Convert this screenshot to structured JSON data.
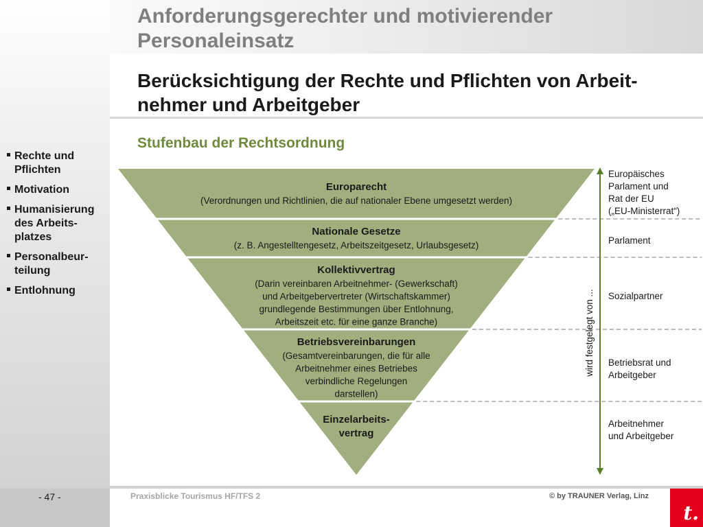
{
  "header": {
    "title": "Anforderungsgerechter und motivierender Personaleinsatz",
    "subtitle": "Berücksichtigung der Rechte und Pflichten von Arbeit-nehmer und Arbeitgeber",
    "section": "Stufenbau der Rechtsordnung"
  },
  "nav": [
    {
      "label": "Rechte und Pflichten",
      "active": true
    },
    {
      "label": "Motivation",
      "active": false
    },
    {
      "label": "Humanisierung des Arbeits-platzes",
      "active": false
    },
    {
      "label": "Personalbeur-teilung",
      "active": false
    },
    {
      "label": "Entlohnung",
      "active": false
    }
  ],
  "pyramid": {
    "color": "#a3ae7e",
    "levels": [
      {
        "title": "Europarecht",
        "desc": [
          "(Verordnungen und Richtlinien, die auf nationaler Ebene umgesetzt werden)"
        ],
        "party": [
          "Europäisches",
          "Parlament und",
          "Rat der EU",
          "(„EU-Ministerrat“)"
        ]
      },
      {
        "title": "Nationale Gesetze",
        "desc": [
          "(z. B. Angestelltengesetz, Arbeitszeitgesetz, Urlaubsgesetz)"
        ],
        "party": [
          "Parlament"
        ]
      },
      {
        "title": "Kollektivvertrag",
        "desc": [
          "(Darin vereinbaren Arbeitnehmer- (Gewerkschaft)",
          "und Arbeitgebervertreter (Wirtschaftskammer)",
          "grundlegende Bestimmungen über Entlohnung,",
          "Arbeitszeit etc. für eine ganze Branche)"
        ],
        "party": [
          "Sozialpartner"
        ]
      },
      {
        "title": "Betriebsvereinbarungen",
        "desc": [
          "(Gesamtvereinbarungen, die für alle",
          "Arbeitnehmer eines Betriebes",
          "verbindliche Regelungen",
          "darstellen)"
        ],
        "party": [
          "Betriebsrat und",
          "Arbeitgeber"
        ]
      },
      {
        "title": [
          "Einzelarbeits-",
          "vertrag"
        ],
        "desc": [],
        "party": [
          "Arbeitnehmer",
          "und Arbeitgeber"
        ]
      }
    ]
  },
  "axis_label": "wird festgelegt von ...",
  "axis_color": "#5a7d2a",
  "footer": {
    "page": "- 47 -",
    "text": "Praxisblicke Tourismus HF/TFS 2",
    "copyright": "© by TRAUNER Verlag, Linz",
    "logo": "t."
  }
}
